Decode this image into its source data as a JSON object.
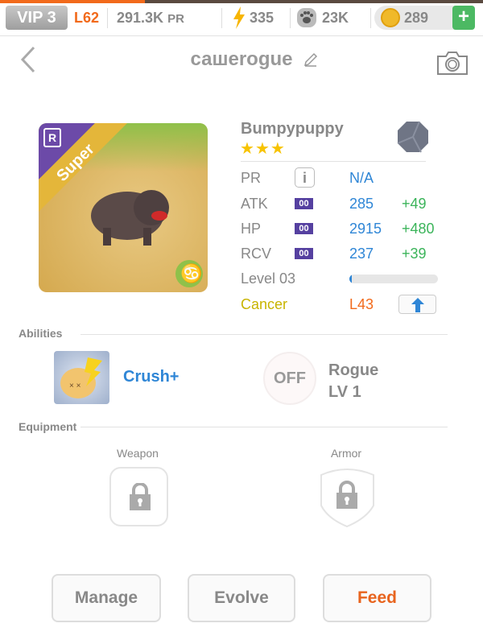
{
  "progress_fraction": 0.3,
  "status_bar": {
    "vip": "VIP 3",
    "level": "L62",
    "power": "291.3K",
    "power_unit": "PR",
    "energy": "335",
    "paws": "23K",
    "coins": "289",
    "add": "+"
  },
  "header": {
    "title": "сашеrogue",
    "back_icon": "chevron-left-icon",
    "edit_icon": "pencil-icon",
    "camera_icon": "camera-icon"
  },
  "pet": {
    "name": "Bumpypuppy",
    "rarity": "Super",
    "rarity_badge": "R",
    "stars": 3,
    "sign_icon": "cancer-icon",
    "stats": [
      {
        "label": "PR",
        "value": "N/A"
      },
      {
        "label": "ATK",
        "badge": "00",
        "value": "285",
        "bonus": "+49"
      },
      {
        "label": "HP",
        "badge": "00",
        "value": "2915",
        "bonus": "+480"
      },
      {
        "label": "RCV",
        "badge": "00",
        "value": "237",
        "bonus": "+39"
      }
    ],
    "level_label": "Level 03",
    "level_progress": 0.02,
    "sign": "Cancer",
    "sign_level": "L43"
  },
  "abilities": {
    "label": "Abilities",
    "skill": "Crush+",
    "passive_state": "OFF",
    "passive_name": "Rogue",
    "passive_level": "LV 1"
  },
  "equipment": {
    "label": "Equipment",
    "weapon": "Weapon",
    "armor": "Armor"
  },
  "actions": {
    "manage": "Manage",
    "evolve": "Evolve",
    "feed": "Feed"
  },
  "colors": {
    "accent_orange": "#f26a1b",
    "blue": "#2f86d6",
    "green": "#3bb45a",
    "purple": "#5540a0",
    "gold": "#c8b400"
  }
}
